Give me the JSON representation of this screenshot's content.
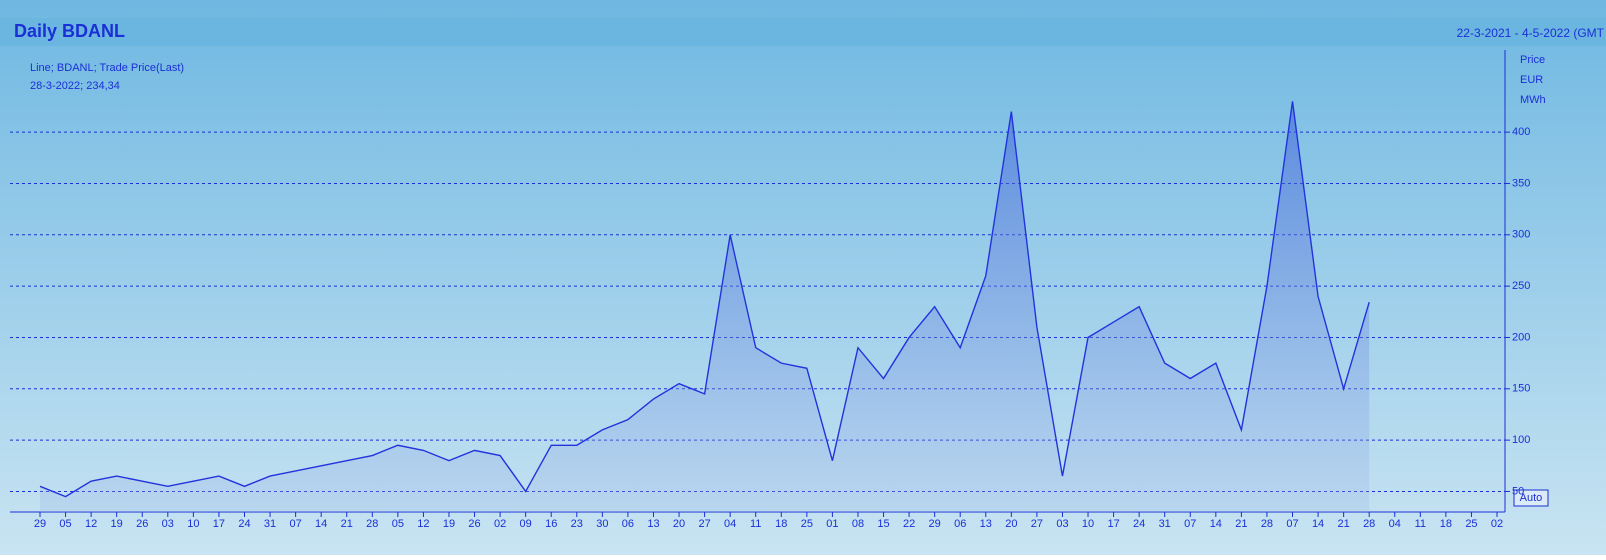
{
  "chart_data": {
    "type": "line",
    "title": "Daily BDANL",
    "subtitle": "22-3-2021 - 4-5-2022 (GMT",
    "legend_text": "Line; BDANL; Trade Price(Last)",
    "annotation": "28-3-2022; 234,34",
    "y_axis_label": [
      "Price",
      "EUR",
      "MWh"
    ],
    "scale_button": "Auto",
    "categories": [
      "29",
      "05",
      "12",
      "19",
      "26",
      "03",
      "10",
      "17",
      "24",
      "31",
      "07",
      "14",
      "21",
      "28",
      "05",
      "12",
      "19",
      "26",
      "02",
      "09",
      "16",
      "23",
      "30",
      "06",
      "13",
      "20",
      "27",
      "04",
      "11",
      "18",
      "25",
      "01",
      "08",
      "15",
      "22",
      "29",
      "06",
      "13",
      "20",
      "27",
      "03",
      "10",
      "17",
      "24",
      "31",
      "07",
      "14",
      "21",
      "28",
      "07",
      "14",
      "21",
      "28",
      "04",
      "11",
      "18",
      "25",
      "02"
    ],
    "series": [
      {
        "name": "BDANL",
        "color": "#2233dd",
        "values": [
          55,
          45,
          60,
          65,
          60,
          55,
          60,
          65,
          55,
          65,
          70,
          75,
          80,
          85,
          95,
          90,
          80,
          90,
          85,
          50,
          95,
          95,
          110,
          120,
          140,
          155,
          145,
          300,
          190,
          175,
          170,
          80,
          190,
          160,
          200,
          230,
          190,
          260,
          420,
          210,
          65,
          200,
          215,
          230,
          175,
          160,
          175,
          110,
          250,
          430,
          240,
          150,
          234.34,
          null,
          null,
          null,
          null,
          null
        ]
      }
    ],
    "ylim": [
      30,
      480
    ],
    "yticks": [
      50,
      100,
      150,
      200,
      250,
      300,
      350,
      400
    ],
    "grid": true
  }
}
